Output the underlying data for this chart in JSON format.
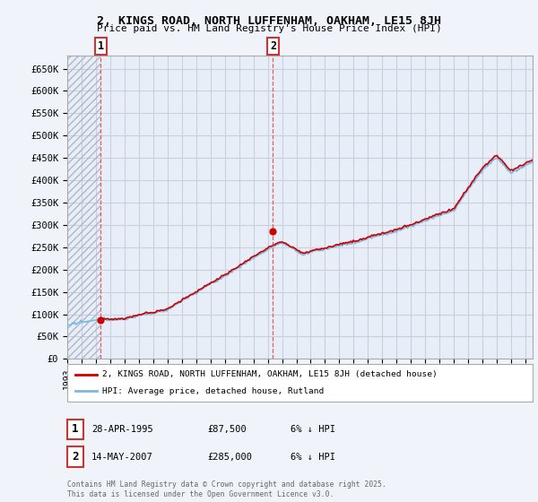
{
  "title": "2, KINGS ROAD, NORTH LUFFENHAM, OAKHAM, LE15 8JH",
  "subtitle": "Price paid vs. HM Land Registry's House Price Index (HPI)",
  "ylim": [
    0,
    680000
  ],
  "ytick_values": [
    0,
    50000,
    100000,
    150000,
    200000,
    250000,
    300000,
    350000,
    400000,
    450000,
    500000,
    550000,
    600000,
    650000
  ],
  "ytick_labels": [
    "£0",
    "£50K",
    "£100K",
    "£150K",
    "£200K",
    "£250K",
    "£300K",
    "£350K",
    "£400K",
    "£450K",
    "£500K",
    "£550K",
    "£600K",
    "£650K"
  ],
  "hpi_color": "#7eb8e0",
  "price_color": "#cc0000",
  "vline1_color": "#dd4444",
  "vline2_color": "#dd4444",
  "purchase1_date": 1995.33,
  "purchase1_price": 87500,
  "purchase2_date": 2007.37,
  "purchase2_price": 285000,
  "legend_line1": "2, KINGS ROAD, NORTH LUFFENHAM, OAKHAM, LE15 8JH (detached house)",
  "legend_line2": "HPI: Average price, detached house, Rutland",
  "box1_color": "#cc3333",
  "box2_color": "#cc3333",
  "table_row1": [
    "1",
    "28-APR-1995",
    "£87,500",
    "6% ↓ HPI"
  ],
  "table_row2": [
    "2",
    "14-MAY-2007",
    "£285,000",
    "6% ↓ HPI"
  ],
  "footer": "Contains HM Land Registry data © Crown copyright and database right 2025.\nThis data is licensed under the Open Government Licence v3.0.",
  "background_color": "#f0f4fa",
  "plot_bg_color": "#e8eef8",
  "grid_color": "#c8d0e0",
  "hatch_start": 1993.0,
  "hatch_end": 1995.33,
  "xlim": [
    1993.0,
    2025.5
  ]
}
